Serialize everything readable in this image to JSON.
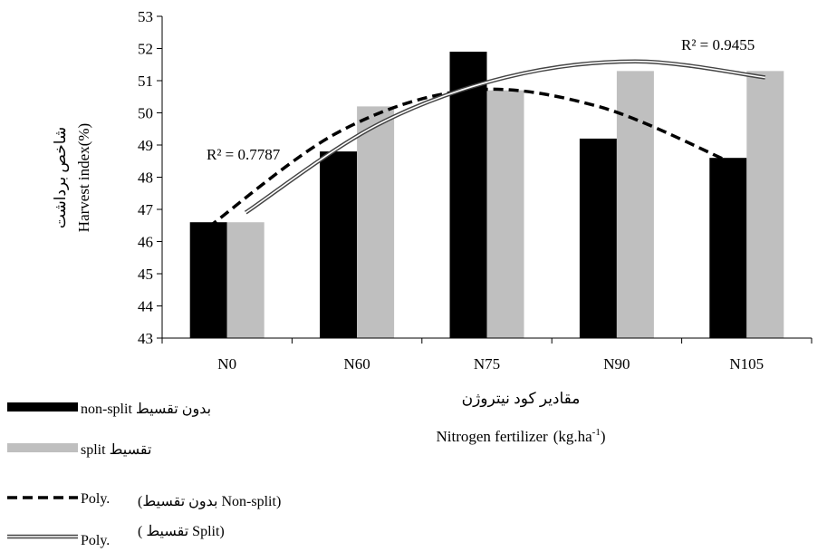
{
  "chart_data": {
    "type": "bar",
    "categories": [
      "N0",
      "N60",
      "N75",
      "N90",
      "N105"
    ],
    "series": [
      {
        "name": "non-split",
        "name_fa": "بدون تقسیط",
        "values": [
          46.6,
          48.8,
          51.9,
          49.2,
          48.6
        ],
        "color": "#000000"
      },
      {
        "name": "split",
        "name_fa": "تقسیط",
        "values": [
          46.6,
          50.2,
          50.7,
          51.3,
          51.3
        ],
        "color": "#bfbfbf"
      }
    ],
    "trendlines": [
      {
        "series": "non-split",
        "type": "Poly.",
        "legend_label": "(بدون تقسیط Non-split)",
        "r2_label": "R² = 0.7787",
        "style": "dashed",
        "points": [
          46.45,
          49.4,
          50.7,
          50.2,
          48.5
        ]
      },
      {
        "series": "split",
        "type": "Poly.",
        "legend_label": "( تقسیط Split)",
        "r2_label": "R² = 0.9455",
        "style": "double",
        "points": [
          46.9,
          49.6,
          51.1,
          51.6,
          51.1
        ]
      }
    ],
    "ylim": [
      43,
      53
    ],
    "yticks": [
      43,
      44,
      45,
      46,
      47,
      48,
      49,
      50,
      51,
      52,
      53
    ],
    "ylabel_fa": "شاخص برداشت",
    "ylabel": "Harvest index(%)",
    "xlabel_fa": "مقادیر کود نیتروژن",
    "xlabel": "Nitrogen fertilizer",
    "xlabel_unit": "(kg.ha",
    "xlabel_unit_sup": "-1",
    "xlabel_unit_end": ")",
    "legend": {
      "position": "bottom-left",
      "items": [
        {
          "label_en": "non-split",
          "label_fa": "بدون تقسیط"
        },
        {
          "label_en": "split",
          "label_fa": "تقسیط"
        },
        {
          "label_en": "Poly.",
          "label_fa": "(بدون تقسیط Non-split)"
        },
        {
          "label_en": "Poly.",
          "label_fa": "( تقسیط Split)"
        }
      ]
    }
  }
}
